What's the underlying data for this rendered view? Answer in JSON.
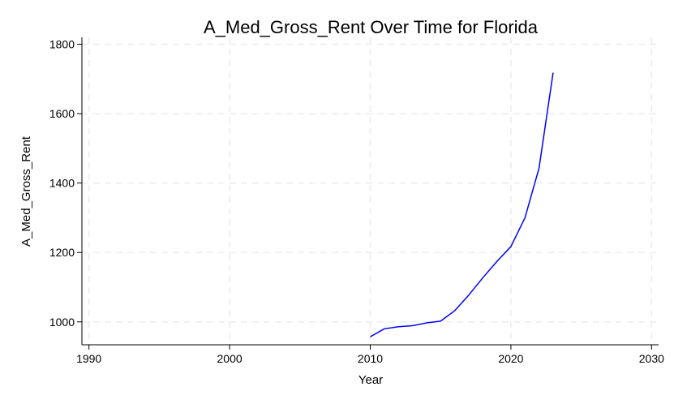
{
  "chart_data": {
    "type": "line",
    "title": "A_Med_Gross_Rent Over Time for Florida",
    "xlabel": "Year",
    "ylabel": "A_Med_Gross_Rent",
    "xlim": [
      1989.5,
      2030.5
    ],
    "ylim": [
      934,
      1820
    ],
    "xticks": [
      1990,
      2000,
      2010,
      2020,
      2030
    ],
    "yticks": [
      1000,
      1200,
      1400,
      1600,
      1800
    ],
    "grid": true,
    "series": [
      {
        "color": "#0000ff",
        "x": [
          2010,
          2011,
          2012,
          2013,
          2014,
          2015,
          2016,
          2017,
          2018,
          2019,
          2020,
          2021,
          2022,
          2023
        ],
        "y": [
          957,
          980,
          986,
          989,
          997,
          1002,
          1032,
          1077,
          1127,
          1174,
          1217,
          1300,
          1443,
          1718
        ]
      }
    ]
  }
}
